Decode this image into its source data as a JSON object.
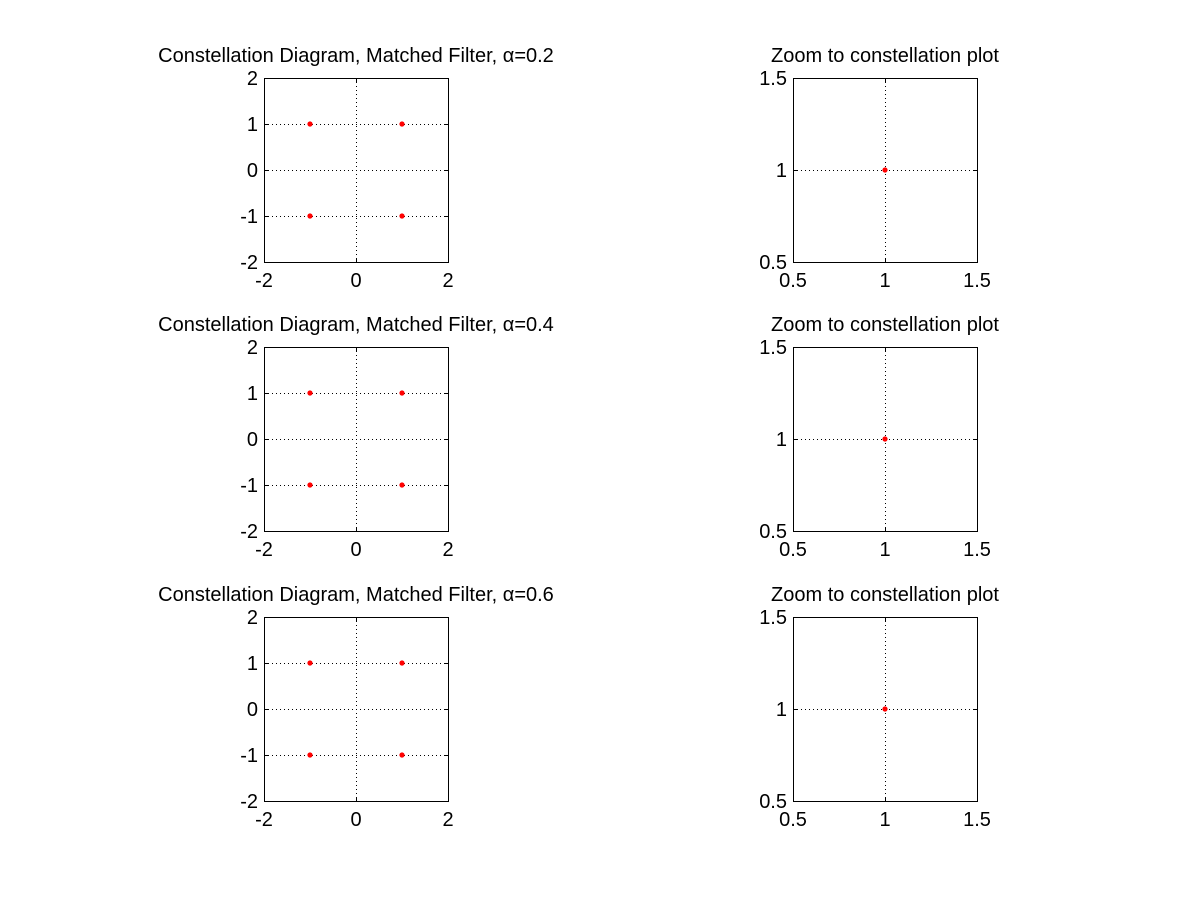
{
  "chart_data": [
    {
      "type": "scatter",
      "title": "Constellation Diagram, Matched Filter, α=0.2",
      "xlim": [
        -2,
        2
      ],
      "ylim": [
        -2,
        2
      ],
      "xticks": [
        -2,
        0,
        2
      ],
      "yticks": [
        -2,
        -1,
        0,
        1,
        2
      ],
      "xtick_labels": [
        "-2",
        "0",
        "2"
      ],
      "ytick_labels": [
        "-2",
        "-1",
        "0",
        "1",
        "2"
      ],
      "grid": true,
      "marker_color": "#ff0000",
      "points": [
        {
          "x": -1,
          "y": 1
        },
        {
          "x": 1,
          "y": 1
        },
        {
          "x": -1,
          "y": -1
        },
        {
          "x": 1,
          "y": -1
        }
      ]
    },
    {
      "type": "scatter",
      "title": "Zoom to constellation plot",
      "xlim": [
        0.5,
        1.5
      ],
      "ylim": [
        0.5,
        1.5
      ],
      "xticks": [
        0.5,
        1,
        1.5
      ],
      "yticks": [
        0.5,
        1,
        1.5
      ],
      "xtick_labels": [
        "0.5",
        "1",
        "1.5"
      ],
      "ytick_labels": [
        "0.5",
        "1",
        "1.5"
      ],
      "grid": true,
      "marker_color": "#ff0000",
      "points": [
        {
          "x": 1,
          "y": 1
        }
      ]
    },
    {
      "type": "scatter",
      "title": "Constellation Diagram, Matched Filter, α=0.4",
      "xlim": [
        -2,
        2
      ],
      "ylim": [
        -2,
        2
      ],
      "xticks": [
        -2,
        0,
        2
      ],
      "yticks": [
        -2,
        -1,
        0,
        1,
        2
      ],
      "xtick_labels": [
        "-2",
        "0",
        "2"
      ],
      "ytick_labels": [
        "-2",
        "-1",
        "0",
        "1",
        "2"
      ],
      "grid": true,
      "marker_color": "#ff0000",
      "points": [
        {
          "x": -1,
          "y": 1
        },
        {
          "x": 1,
          "y": 1
        },
        {
          "x": -1,
          "y": -1
        },
        {
          "x": 1,
          "y": -1
        }
      ]
    },
    {
      "type": "scatter",
      "title": "Zoom to constellation plot",
      "xlim": [
        0.5,
        1.5
      ],
      "ylim": [
        0.5,
        1.5
      ],
      "xticks": [
        0.5,
        1,
        1.5
      ],
      "yticks": [
        0.5,
        1,
        1.5
      ],
      "xtick_labels": [
        "0.5",
        "1",
        "1.5"
      ],
      "ytick_labels": [
        "0.5",
        "1",
        "1.5"
      ],
      "grid": true,
      "marker_color": "#ff0000",
      "points": [
        {
          "x": 1,
          "y": 1
        }
      ]
    },
    {
      "type": "scatter",
      "title": "Constellation Diagram, Matched Filter, α=0.6",
      "xlim": [
        -2,
        2
      ],
      "ylim": [
        -2,
        2
      ],
      "xticks": [
        -2,
        0,
        2
      ],
      "yticks": [
        -2,
        -1,
        0,
        1,
        2
      ],
      "xtick_labels": [
        "-2",
        "0",
        "2"
      ],
      "ytick_labels": [
        "-2",
        "-1",
        "0",
        "1",
        "2"
      ],
      "grid": true,
      "marker_color": "#ff0000",
      "points": [
        {
          "x": -1,
          "y": 1
        },
        {
          "x": 1,
          "y": 1
        },
        {
          "x": -1,
          "y": -1
        },
        {
          "x": 1,
          "y": -1
        }
      ]
    },
    {
      "type": "scatter",
      "title": "Zoom to constellation plot",
      "xlim": [
        0.5,
        1.5
      ],
      "ylim": [
        0.5,
        1.5
      ],
      "xticks": [
        0.5,
        1,
        1.5
      ],
      "yticks": [
        0.5,
        1,
        1.5
      ],
      "xtick_labels": [
        "0.5",
        "1",
        "1.5"
      ],
      "ytick_labels": [
        "0.5",
        "1",
        "1.5"
      ],
      "grid": true,
      "marker_color": "#ff0000",
      "points": [
        {
          "x": 1,
          "y": 1
        }
      ]
    }
  ]
}
